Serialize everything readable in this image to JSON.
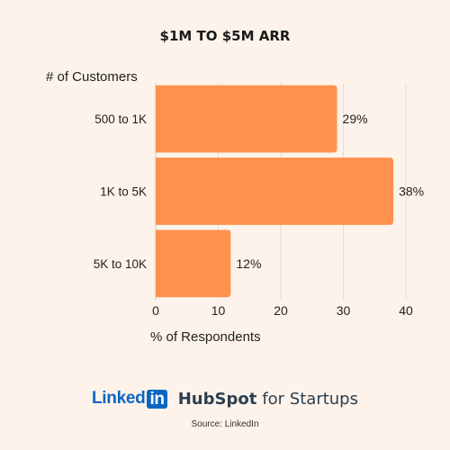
{
  "chart_data": {
    "type": "bar",
    "orientation": "horizontal",
    "title": "$1M TO $5M ARR",
    "ylabel": "# of Customers",
    "xlabel": "% of Respondents",
    "categories": [
      "500 to 1K",
      "1K to 5K",
      "5K to 10K"
    ],
    "values": [
      29,
      38,
      12
    ],
    "data_labels": [
      "29%",
      "38%",
      "12%"
    ],
    "xlim": [
      0,
      40
    ],
    "xticks": [
      0,
      10,
      20,
      30,
      40
    ],
    "grid": true,
    "bar_color": "#ff914d"
  },
  "footer": {
    "linkedin_text": "Linked",
    "linkedin_in": "in",
    "hubspot_brand": "HubSpot",
    "hubspot_tagline": "for Startups"
  },
  "source": "Source: LinkedIn"
}
